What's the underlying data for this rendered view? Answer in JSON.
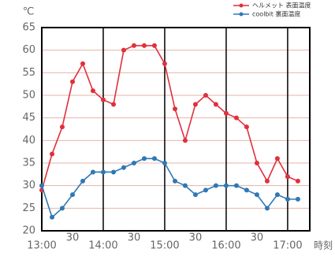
{
  "chart_data": {
    "type": "line",
    "y_unit": "℃",
    "x_label": "時刻",
    "x": [
      13,
      13.167,
      13.333,
      13.5,
      13.667,
      13.833,
      14,
      14.167,
      14.333,
      14.5,
      14.667,
      14.833,
      15,
      15.167,
      15.333,
      15.5,
      15.667,
      15.833,
      16,
      16.167,
      16.333,
      16.5,
      16.667,
      16.833,
      17,
      17.167
    ],
    "series": [
      {
        "name": "ヘルメット 表面温度",
        "color": "#e0303c",
        "values": [
          29,
          37,
          43,
          53,
          57,
          51,
          49,
          48,
          60,
          61,
          61,
          61,
          57,
          47,
          40,
          48,
          50,
          48,
          46,
          45,
          43,
          35,
          31,
          36,
          32,
          31
        ]
      },
      {
        "name": "coolbit 裏面温度",
        "color": "#2f78b5",
        "values": [
          30,
          23,
          25,
          28,
          31,
          33,
          33,
          33,
          34,
          35,
          36,
          36,
          35,
          31,
          30,
          28,
          29,
          30,
          30,
          30,
          29,
          28,
          25,
          28,
          27,
          27
        ]
      }
    ],
    "xlim": [
      13,
      17.36
    ],
    "xticks": [
      {
        "value": 13,
        "label": "13:00"
      },
      {
        "value": 13.5,
        "label": "30"
      },
      {
        "value": 14,
        "label": "14:00"
      },
      {
        "value": 14.5,
        "label": "30"
      },
      {
        "value": 15,
        "label": "15:00"
      },
      {
        "value": 15.5,
        "label": "30"
      },
      {
        "value": 16,
        "label": "16:00"
      },
      {
        "value": 16.5,
        "label": "30"
      },
      {
        "value": 17,
        "label": "17:00"
      }
    ],
    "ylim": [
      20,
      65
    ],
    "yticks": [
      20,
      25,
      30,
      35,
      40,
      45,
      50,
      55,
      60,
      65
    ],
    "grid": true
  }
}
